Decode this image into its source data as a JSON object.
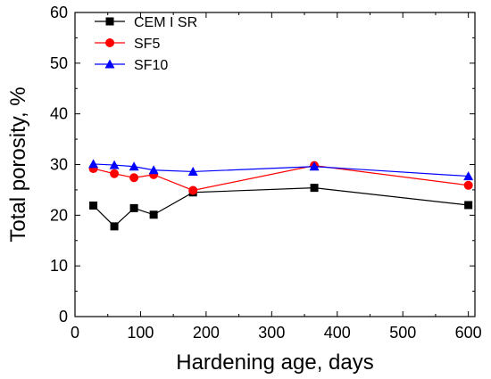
{
  "chart_data": {
    "type": "line",
    "xlabel": "Hardening age, days",
    "ylabel": "Total porosity, %",
    "xlim": [
      0,
      610
    ],
    "ylim": [
      0,
      60
    ],
    "xticks": [
      "0",
      "100",
      "200",
      "300",
      "400",
      "500",
      "600"
    ],
    "yticks": [
      "0",
      "10",
      "20",
      "30",
      "40",
      "50",
      "60"
    ],
    "grid": false,
    "legend_position": "top-left",
    "series": [
      {
        "name": "CEM I SR",
        "color": "#000000",
        "marker": "square",
        "x": [
          28,
          60,
          90,
          120,
          180,
          365,
          600
        ],
        "y": [
          21.9,
          17.8,
          21.4,
          20.1,
          24.5,
          25.4,
          22.0
        ]
      },
      {
        "name": "SF5",
        "color": "#ff0000",
        "marker": "circle",
        "x": [
          28,
          60,
          90,
          120,
          180,
          365,
          600
        ],
        "y": [
          29.2,
          28.2,
          27.4,
          28.0,
          24.9,
          29.8,
          25.9
        ]
      },
      {
        "name": "SF10",
        "color": "#0000ff",
        "marker": "triangle",
        "x": [
          28,
          60,
          90,
          120,
          180,
          365,
          600
        ],
        "y": [
          30.1,
          29.9,
          29.6,
          28.9,
          28.6,
          29.6,
          27.7
        ]
      }
    ]
  }
}
